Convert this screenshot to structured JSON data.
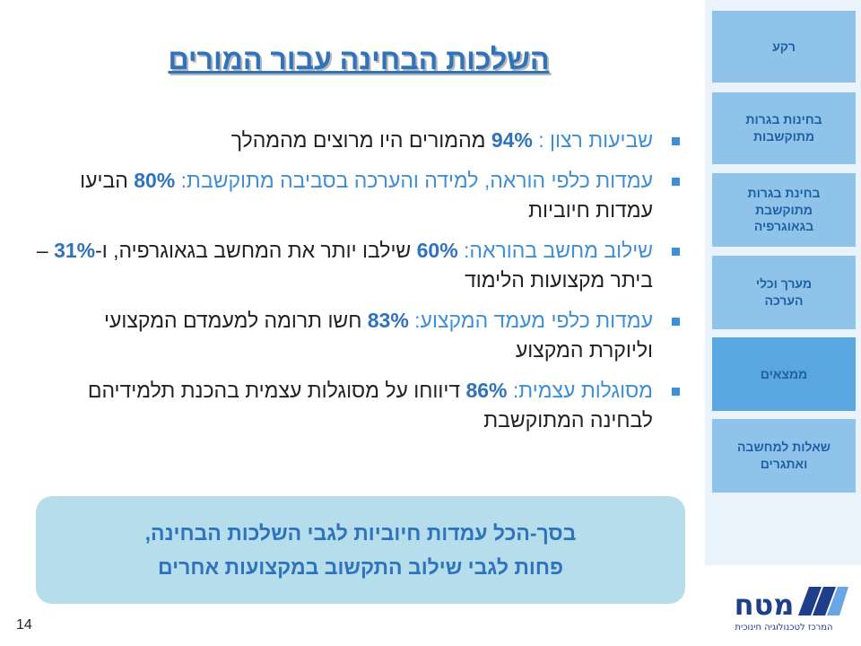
{
  "sidebar": {
    "items": [
      {
        "label": "רקע",
        "active": false
      },
      {
        "label": "בחינות בגרות\nמתוקשבות",
        "active": false
      },
      {
        "label": "בחינת בגרות\nמתוקשבת\nבגאוגרפיה",
        "active": false
      },
      {
        "label": "מערך וכלי\nהערכה",
        "active": false
      },
      {
        "label": "ממצאים",
        "active": true
      },
      {
        "label": "שאלות למחשבה\nואתגרים",
        "active": false
      }
    ]
  },
  "title": "השלכות הבחינה עבור המורים",
  "bullets": [
    {
      "label": "שביעות רצון :",
      "pct": "94%",
      "text": " מהמורים היו מרוצים מהמהלך"
    },
    {
      "label": "עמדות כלפי הוראה, למידה והערכה בסביבה מתוקשבת:",
      "pct": "80%",
      "text": " הביעו עמדות חיוביות"
    },
    {
      "label": "שילוב מחשב בהוראה:",
      "pct": "60%",
      "text": " שילבו יותר את המחשב בגאוגרפיה, ו-",
      "pct2": "31%",
      "text2": " – ביתר מקצועות הלימוד"
    },
    {
      "label": "עמדות כלפי מעמד המקצוע:",
      "pct": "83%",
      "text": " חשו תרומה למעמדם המקצועי וליוקרת המקצוע"
    },
    {
      "label": "מסוגלות עצמית:",
      "pct": "86%",
      "text": " דיווחו על מסוגלות עצמית בהכנת תלמידיהם לבחינה המתוקשבת"
    }
  ],
  "summary": {
    "line1": "בסך-הכל עמדות חיוביות לגבי השלכות הבחינה,",
    "line2": "פחות לגבי שילוב התקשוב במקצועות אחרים"
  },
  "page_number": "14",
  "logo": {
    "wordmark": "מטח",
    "tagline": "המרכז לטכנולוגיה חינוכית"
  },
  "colors": {
    "accent": "#3e8fd6",
    "title": "#2f73bd",
    "nav_bg": "#8fc3ea",
    "nav_active": "#5aa6e0",
    "summary_bg": "#b6ddeb"
  }
}
